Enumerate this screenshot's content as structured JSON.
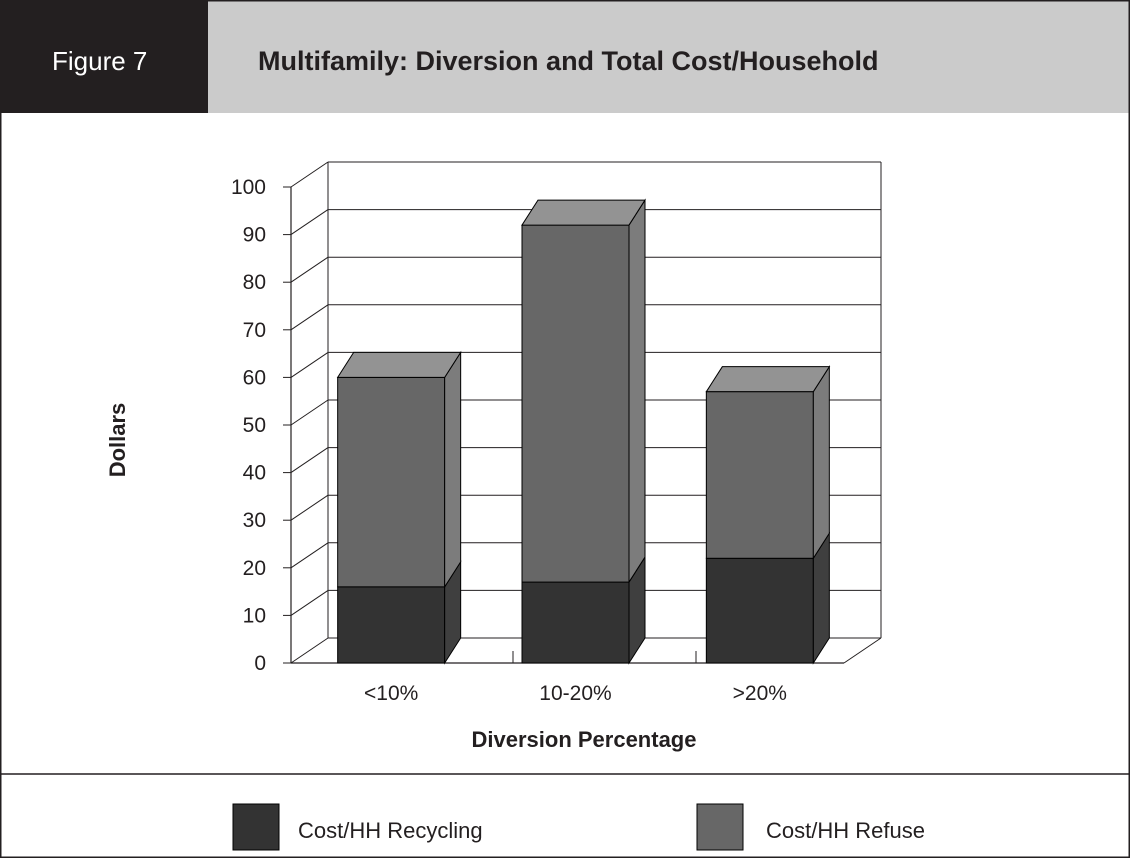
{
  "figure_label": "Figure 7",
  "colors": {
    "header_dark": "#231f20",
    "header_light": "#cbcbcb",
    "recycling": "#333333",
    "refuse": "#676767",
    "refuse_top": "#939393",
    "refuse_side": "#7c7c7c",
    "recycling_side": "#3f3f3f"
  },
  "chart_data": {
    "type": "bar",
    "stacked": true,
    "three_d": true,
    "title": "Multifamily: Diversion and Total Cost/Household",
    "xlabel": "Diversion Percentage",
    "ylabel": "Dollars",
    "categories": [
      "<10%",
      "10-20%",
      ">20%"
    ],
    "series": [
      {
        "name": "Cost/HH Recycling",
        "values": [
          16,
          17,
          22
        ]
      },
      {
        "name": "Cost/HH Refuse",
        "values": [
          44,
          75,
          35
        ]
      }
    ],
    "ylim": [
      0,
      100
    ],
    "yticks": [
      0,
      10,
      20,
      30,
      40,
      50,
      60,
      70,
      80,
      90,
      100
    ],
    "grid": true,
    "legend": "bottom"
  }
}
